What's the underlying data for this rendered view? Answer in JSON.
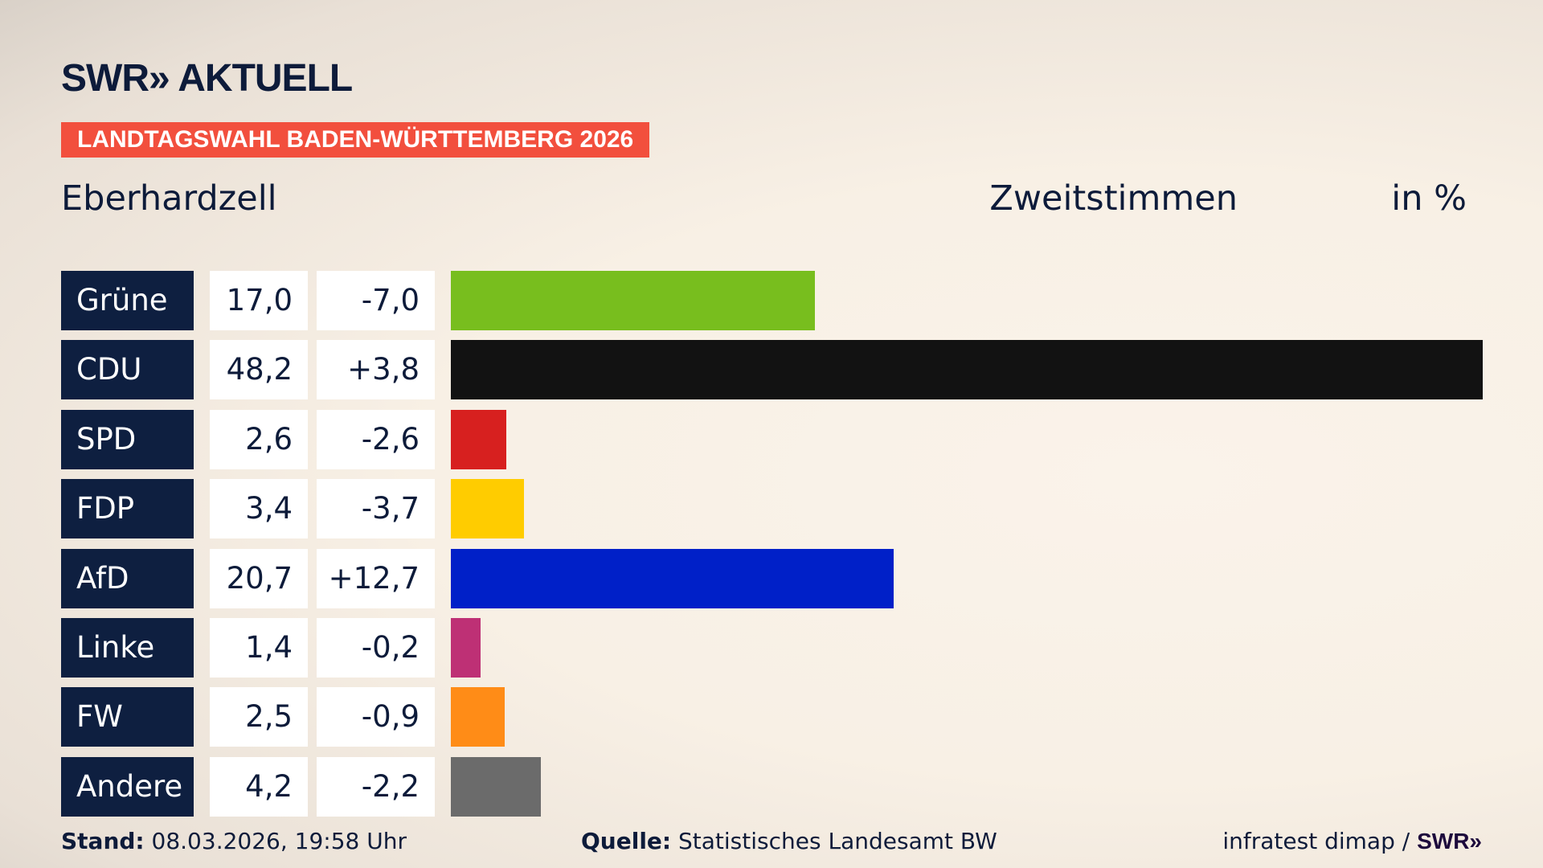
{
  "header": {
    "logo": "SWR» AKTUELL",
    "banner": "LANDTAGSWAHL BADEN-WÜRTTEMBERG 2026",
    "place": "Eberhardzell",
    "measure": "Zweitstimmen",
    "unit": "in %"
  },
  "chart_data": {
    "type": "bar",
    "orientation": "horizontal",
    "xlim": [
      0,
      48.2
    ],
    "categories": [
      "Grüne",
      "CDU",
      "SPD",
      "FDP",
      "AfD",
      "Linke",
      "FW",
      "Andere"
    ],
    "values": [
      17.0,
      48.2,
      2.6,
      3.4,
      20.7,
      1.4,
      2.5,
      4.2
    ],
    "value_labels": [
      "17,0",
      "48,2",
      "2,6",
      "3,4",
      "20,7",
      "1,4",
      "2,5",
      "4,2"
    ],
    "changes": [
      -7.0,
      3.8,
      -2.6,
      -3.7,
      12.7,
      -0.2,
      -0.9,
      -2.2
    ],
    "change_labels": [
      "-7,0",
      "+3,8",
      "-2,6",
      "-3,7",
      "+12,7",
      "-0,2",
      "-0,9",
      "-2,2"
    ],
    "colors": [
      "#78be1e",
      "#121212",
      "#d7201f",
      "#ffcc00",
      "#0020c8",
      "#be3075",
      "#ff8c17",
      "#6b6b6b"
    ]
  },
  "footer": {
    "stand_label": "Stand:",
    "stand": "08.03.2026, 19:58 Uhr",
    "source_label": "Quelle:",
    "source": "Statistisches Landesamt BW",
    "credit": "infratest dimap / ",
    "credit_logo": "SWR»"
  }
}
